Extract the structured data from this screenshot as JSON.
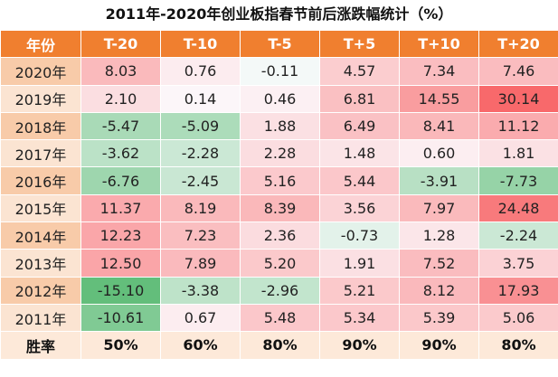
{
  "title": "2011年-2020年创业板指春节前后涨跌幅统计（%）",
  "header": [
    "年份",
    "T-20",
    "T-10",
    "T-5",
    "T+5",
    "T+10",
    "T+20"
  ],
  "rows": [
    {
      "year": "2020年",
      "values": [
        "8.03",
        "0.76",
        "-0.11",
        "4.57",
        "7.34",
        "7.46"
      ]
    },
    {
      "year": "2019年",
      "values": [
        "2.10",
        "0.14",
        "0.46",
        "6.81",
        "14.55",
        "30.14"
      ]
    },
    {
      "year": "2018年",
      "values": [
        "-5.47",
        "-5.09",
        "1.88",
        "6.49",
        "8.41",
        "11.12"
      ]
    },
    {
      "year": "2017年",
      "values": [
        "-3.62",
        "-2.28",
        "2.28",
        "1.48",
        "0.60",
        "1.81"
      ]
    },
    {
      "year": "2016年",
      "values": [
        "-6.76",
        "-2.45",
        "5.16",
        "5.44",
        "-3.91",
        "-7.73"
      ]
    },
    {
      "year": "2015年",
      "values": [
        "11.37",
        "8.19",
        "8.39",
        "3.56",
        "7.97",
        "24.48"
      ]
    },
    {
      "year": "2014年",
      "values": [
        "12.23",
        "7.23",
        "2.36",
        "-0.73",
        "1.28",
        "-2.24"
      ]
    },
    {
      "year": "2013年",
      "values": [
        "12.50",
        "7.89",
        "5.20",
        "1.91",
        "7.52",
        "3.75"
      ]
    },
    {
      "year": "2012年",
      "values": [
        "-15.10",
        "-3.38",
        "-2.96",
        "5.21",
        "8.12",
        "17.93"
      ]
    },
    {
      "year": "2011年",
      "values": [
        "-10.61",
        "0.67",
        "5.48",
        "5.34",
        "5.39",
        "5.06"
      ]
    }
  ],
  "footer": {
    "label": "胜率",
    "values": [
      "50%",
      "60%",
      "80%",
      "90%",
      "90%",
      "80%"
    ]
  },
  "colors": {
    "header_bg": "#f07f2f",
    "positive_max": "#f8696b",
    "negative_max": "#63be7b",
    "neutral": "#fcfcff"
  }
}
